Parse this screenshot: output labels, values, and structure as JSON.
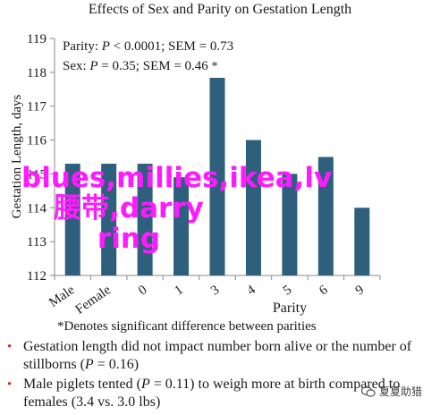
{
  "chart_data": {
    "type": "bar",
    "title": "Effects of Sex and Parity on Gestation Length",
    "xlabel": "Parity",
    "ylabel": "Gestation Length, days",
    "categories": [
      "Male",
      "Female",
      "0",
      "1",
      "3",
      "4",
      "5",
      "6",
      "9"
    ],
    "values": [
      115.3,
      115.3,
      115.3,
      114.9,
      118.0,
      116.0,
      115.0,
      115.5,
      114.0
    ],
    "ylim": [
      112,
      119
    ],
    "yticks": [
      "112",
      "113",
      "114",
      "115",
      "116",
      "117",
      "118",
      "119"
    ],
    "bar_color": "#2e5f7d",
    "grid": false,
    "starred": [
      "3"
    ],
    "star_symbol": "*"
  },
  "stats": {
    "parity_label": "Parity:",
    "parity_p": "P",
    "parity_rest": " < 0.0001; SEM = 0.73",
    "sex_label": "Sex:",
    "sex_p": "P",
    "sex_rest": " = 0.35; SEM = 0.46",
    "star": "*"
  },
  "footnote": "*Denotes significant difference between parities",
  "bullets": [
    {
      "pre": "Gestation length did not impact number born alive or the number of stillborns (",
      "p": "P",
      "post": " = 0.16)"
    },
    {
      "pre": "Male piglets tented (",
      "p": "P",
      "post": " = 0.11) to weigh more at birth compared to females (3.4 vs. 3.0 lbs)"
    }
  ],
  "bullet_symbol": "•",
  "watermark": "blues,millies,ikea,lv腰带,darry ring",
  "wechat_label": "夏夏助猎",
  "icons": {
    "wechat": "wechat-icon"
  }
}
